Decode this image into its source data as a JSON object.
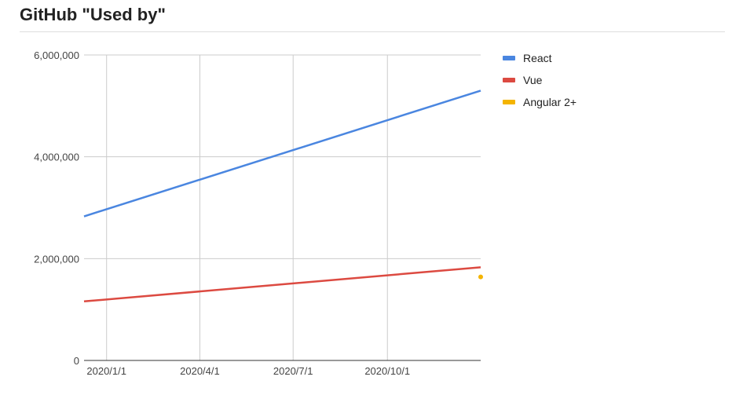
{
  "chart_data": {
    "type": "line",
    "title": "GitHub \"Used by\"",
    "xlabel": "",
    "ylabel": "",
    "x_type": "date",
    "x_ticks": [
      "2020/1/1",
      "2020/4/1",
      "2020/7/1",
      "2020/10/1"
    ],
    "xlim": [
      "2019-12-10",
      "2020-12-31"
    ],
    "ylim": [
      0,
      6000000
    ],
    "y_ticks": [
      "0",
      "2,000,000",
      "4,000,000",
      "6,000,000"
    ],
    "grid": true,
    "legend_position": "right",
    "series": [
      {
        "name": "React",
        "color": "#4a86e0",
        "points": [
          {
            "x": "2019-12-10",
            "y": 2830000
          },
          {
            "x": "2020-12-31",
            "y": 5300000
          }
        ]
      },
      {
        "name": "Vue",
        "color": "#dc4a41",
        "points": [
          {
            "x": "2019-12-10",
            "y": 1160000
          },
          {
            "x": "2020-12-31",
            "y": 1830000
          }
        ]
      },
      {
        "name": "Angular 2+",
        "color": "#f4b400",
        "points": [
          {
            "x": "2020-12-31",
            "y": 1640000
          }
        ]
      }
    ]
  }
}
